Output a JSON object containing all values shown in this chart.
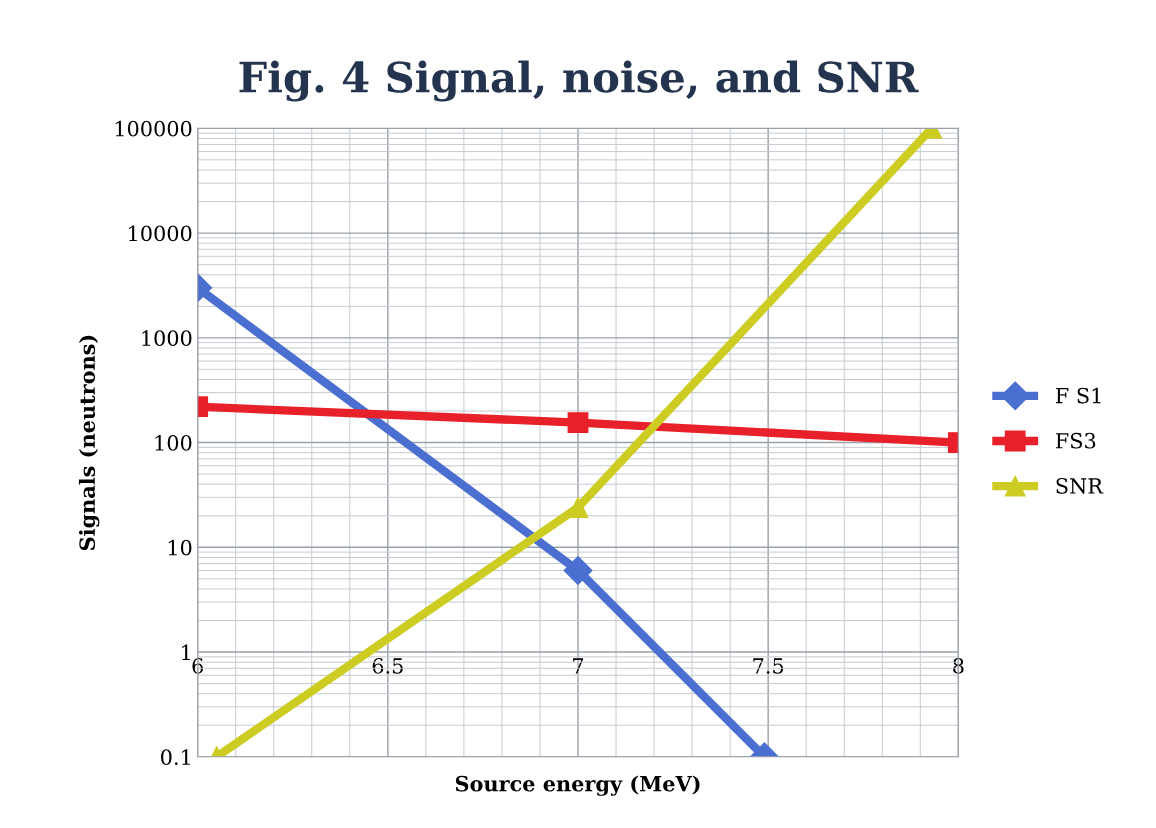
{
  "chart_data": {
    "type": "line",
    "title": "Fig. 4 Signal, noise, and SNR",
    "xlabel": "Source energy (MeV)",
    "ylabel": "Signals (neutrons)",
    "log": "y",
    "xlim": [
      6,
      8
    ],
    "xticks": [
      6,
      6.5,
      7,
      7.5,
      8
    ],
    "ylim": [
      0.1,
      100000
    ],
    "yticks": [
      0.1,
      1,
      10,
      100,
      1000,
      10000,
      100000
    ],
    "grid": true,
    "legend": "right",
    "line_style": "solid",
    "series": [
      {
        "name": "F S1",
        "color": "#4a6fd0",
        "marker": "diamond",
        "x": [
          6,
          7,
          7.49
        ],
        "values": [
          3000,
          6,
          0.1
        ]
      },
      {
        "name": "FS3",
        "color": "#e8202a",
        "marker": "square",
        "x": [
          6,
          7,
          8
        ],
        "values": [
          220,
          155,
          100
        ]
      },
      {
        "name": "SNR",
        "color": "#cccc22",
        "marker": "triangle",
        "x": [
          6.05,
          7,
          7.93
        ],
        "values": [
          0.1,
          24,
          100000
        ]
      }
    ]
  }
}
